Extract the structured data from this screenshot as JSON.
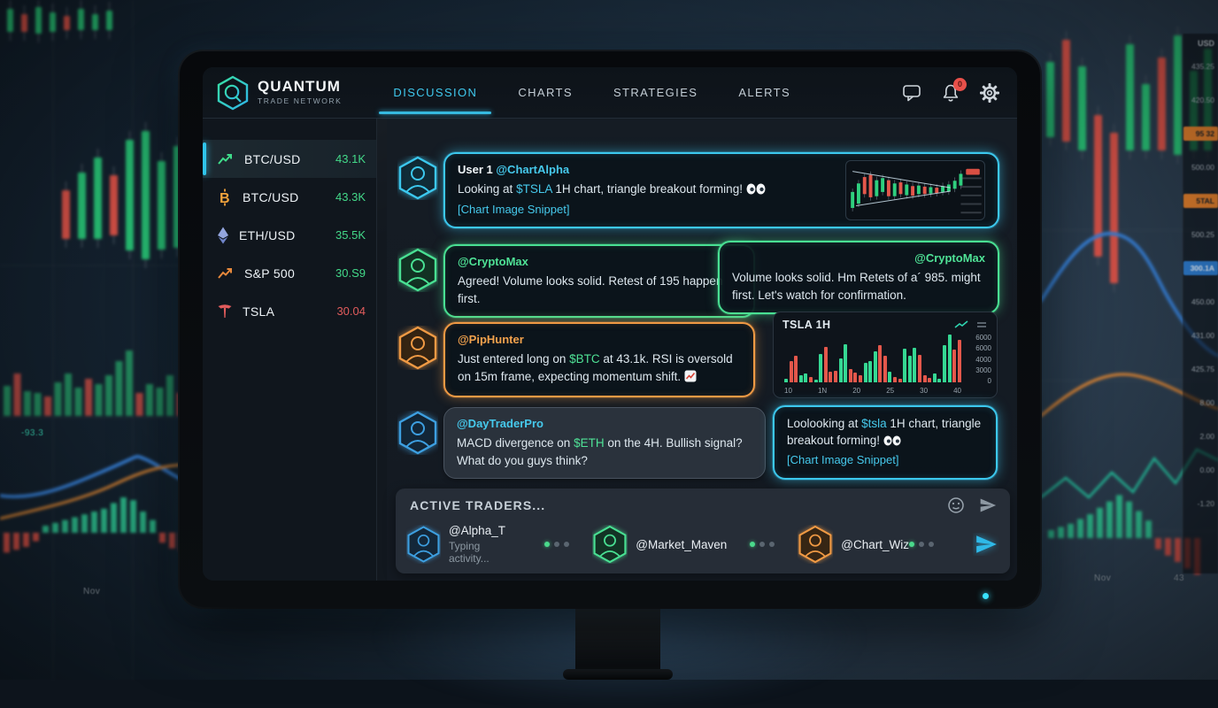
{
  "colors": {
    "green": "#2fcf7e",
    "red": "#e4574b",
    "bar_green": "#35d893",
    "bar_red": "#e4574b"
  },
  "background": {
    "labels": {
      "left_note": "-93.3",
      "left_month": "Nov",
      "right_month": "Nov",
      "right_x": "43",
      "axis_title": "USD"
    },
    "axis_items": [
      {
        "t": "435.25",
        "k": "p"
      },
      {
        "t": "420.50",
        "k": "p"
      },
      {
        "t": "95 32",
        "k": "o"
      },
      {
        "t": "500.00",
        "k": "p"
      },
      {
        "t": "5TAL",
        "k": "o"
      },
      {
        "t": "500.25",
        "k": "p"
      },
      {
        "t": "300.1A",
        "k": "b"
      },
      {
        "t": "450.00",
        "k": "p"
      },
      {
        "t": "431.00",
        "k": "p"
      },
      {
        "t": "425.75",
        "k": "p"
      },
      {
        "t": "8.00",
        "k": "p"
      },
      {
        "t": "2.00",
        "k": "p"
      },
      {
        "t": "0.00",
        "k": "p"
      },
      {
        "t": "-1.20",
        "k": "p"
      }
    ],
    "left_top_candles": [
      [
        8,
        10,
        26,
        1
      ],
      [
        24,
        16,
        20,
        -1
      ],
      [
        40,
        8,
        30,
        1
      ],
      [
        56,
        14,
        22,
        1
      ],
      [
        72,
        18,
        16,
        -1
      ],
      [
        88,
        10,
        24,
        1
      ],
      [
        104,
        16,
        18,
        1
      ],
      [
        120,
        12,
        22,
        1
      ]
    ],
    "left_candles": [
      [
        70,
        215,
        55,
        -1
      ],
      [
        88,
        195,
        75,
        1
      ],
      [
        106,
        178,
        92,
        1
      ],
      [
        124,
        198,
        68,
        -1
      ],
      [
        142,
        158,
        125,
        1
      ],
      [
        160,
        148,
        145,
        1
      ],
      [
        178,
        182,
        100,
        1
      ],
      [
        196,
        165,
        115,
        1
      ]
    ],
    "left_volume": [
      34,
      -48,
      28,
      26,
      -22,
      38,
      48,
      32,
      -42,
      36,
      46,
      62,
      74,
      -26,
      36,
      32,
      46,
      -26
    ],
    "left_hist": [
      -14,
      -12,
      -10,
      -6,
      5,
      7,
      9,
      11,
      13,
      15,
      17,
      21,
      25,
      23,
      15,
      9,
      -7,
      -11,
      -13
    ],
    "right_candles": [
      [
        6,
        70,
        85,
        1
      ],
      [
        24,
        45,
        115,
        -1
      ],
      [
        42,
        75,
        95,
        1
      ],
      [
        60,
        130,
        160,
        -1
      ],
      [
        78,
        150,
        170,
        -1
      ],
      [
        96,
        50,
        120,
        1
      ],
      [
        114,
        95,
        75,
        1
      ],
      [
        132,
        65,
        105,
        -1
      ],
      [
        150,
        40,
        135,
        1
      ],
      [
        168,
        80,
        90,
        1
      ],
      [
        184,
        55,
        115,
        1
      ]
    ],
    "right_hist": [
      5,
      7,
      9,
      12,
      15,
      19,
      23,
      27,
      23,
      17,
      11,
      -7,
      -11,
      -15,
      -19,
      -23
    ]
  },
  "app": {
    "brand": {
      "name": "QUANTUM",
      "tagline": "TRADE NETWORK"
    },
    "nav": {
      "tabs": [
        {
          "label": "DISCUSSION"
        },
        {
          "label": "CHARTS"
        },
        {
          "label": "STRATEGIES"
        },
        {
          "label": "ALERTS"
        }
      ],
      "notification_badge": "0"
    },
    "watchlist": [
      {
        "symbol": "BTC/USD",
        "value": "43.1K"
      },
      {
        "symbol": "BTC/USD",
        "value": "43.3K"
      },
      {
        "symbol": "ETH/USD",
        "value": "35.5K"
      },
      {
        "symbol": "S&P 500",
        "value": "30.S9"
      },
      {
        "symbol": "TSLA",
        "value": "30.04"
      }
    ],
    "messages": {
      "m1": {
        "user": "User 1 ",
        "handle": "@ChartAlpha",
        "before": "Looking at ",
        "ticker": "$TSLA",
        "after": " 1H chart, triangle breakout forming!",
        "attachment": "[Chart Image Snippet]"
      },
      "m2": {
        "handle": "@CryptoMax",
        "text": "Agreed! Volume looks solid. Retest of 195 happen first."
      },
      "m3": {
        "handle": "@CryptoMax",
        "text": "Volume looks solid. Hm Retets of a´ 985. might first. Let's watch for confirmation."
      },
      "m4": {
        "handle": "@PipHunter",
        "before": "Just entered long on ",
        "ticker": "$BTC",
        "after": " at 43.1k. RSI is oversold on 15m frame, expecting momentum shift."
      },
      "m5": {
        "handle": "@DayTraderPro",
        "before": "MACD divergence on ",
        "ticker": "$ETH",
        "after": " on the 4H. Bullish signal? What do you guys think?"
      },
      "m6": {
        "before": "Loolooking at ",
        "ticker": "$tsla",
        "after": " 1H chart, triangle breakout forming!",
        "attachment": "[Chart Image Snippet]"
      }
    },
    "mini_chart": {
      "candles": [
        [
          58,
          30,
          1
        ],
        [
          42,
          38,
          1
        ],
        [
          30,
          32,
          -1
        ],
        [
          26,
          42,
          -1
        ],
        [
          36,
          30,
          1
        ],
        [
          32,
          26,
          1
        ],
        [
          36,
          30,
          -1
        ],
        [
          42,
          24,
          1
        ],
        [
          40,
          22,
          -1
        ],
        [
          44,
          20,
          1
        ],
        [
          47,
          18,
          -1
        ],
        [
          46,
          16,
          1
        ],
        [
          48,
          14,
          -1
        ],
        [
          49,
          12,
          1
        ],
        [
          50,
          10,
          -1
        ],
        [
          47,
          11,
          1
        ],
        [
          44,
          13,
          1
        ],
        [
          37,
          15,
          1
        ],
        [
          24,
          22,
          1
        ]
      ]
    },
    "tsla_panel": {
      "title": "TSLA 1H",
      "y_labels": [
        "6000",
        "6000",
        "4000",
        "3000",
        "0"
      ],
      "x_labels": [
        "10",
        "1N",
        "20",
        "25",
        "30",
        "40"
      ],
      "bars": [
        8,
        -45,
        -55,
        15,
        18,
        -12,
        5,
        60,
        -75,
        -22,
        -25,
        50,
        80,
        -28,
        -20,
        -15,
        40,
        45,
        65,
        -78,
        -55,
        22,
        -12,
        -8,
        70,
        55,
        72,
        -58,
        -15,
        -10,
        18,
        8,
        78,
        100,
        -68,
        -88
      ]
    },
    "active": {
      "title": "ACTIVE TRADERS...",
      "traders": [
        {
          "handle": "@Alpha_T",
          "status": "Typing activity..."
        },
        {
          "handle": "@Market_Maven"
        },
        {
          "handle": "@Chart_Wiz"
        }
      ]
    }
  }
}
